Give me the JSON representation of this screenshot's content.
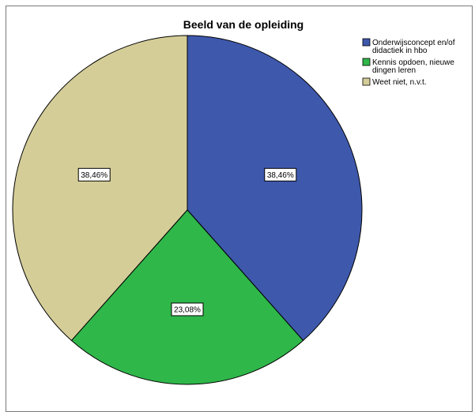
{
  "chart_data": {
    "type": "pie",
    "title": "Beeld van de opleiding",
    "slices": [
      {
        "name": "Onderwijsconcept en/of didactiek in hbo",
        "legend_lines": [
          "Onderwijsconcept en/of",
          "didactiek in hbo"
        ],
        "value": 38.46,
        "label": "38,46%",
        "color": "#3e58ac"
      },
      {
        "name": "Kennis opdoen, nieuwe dingen leren",
        "legend_lines": [
          "Kennis opdoen, nieuwe",
          "dingen leren"
        ],
        "value": 23.08,
        "label": "23,08%",
        "color": "#2fb74a"
      },
      {
        "name": "Weet niet, n.v.t.",
        "legend_lines": [
          "Weet niet, n.v.t."
        ],
        "value": 38.46,
        "label": "38,46%",
        "color": "#d4cd98"
      }
    ],
    "start_angle_deg": 0,
    "direction": "clockwise",
    "legend_position": "top-right"
  }
}
